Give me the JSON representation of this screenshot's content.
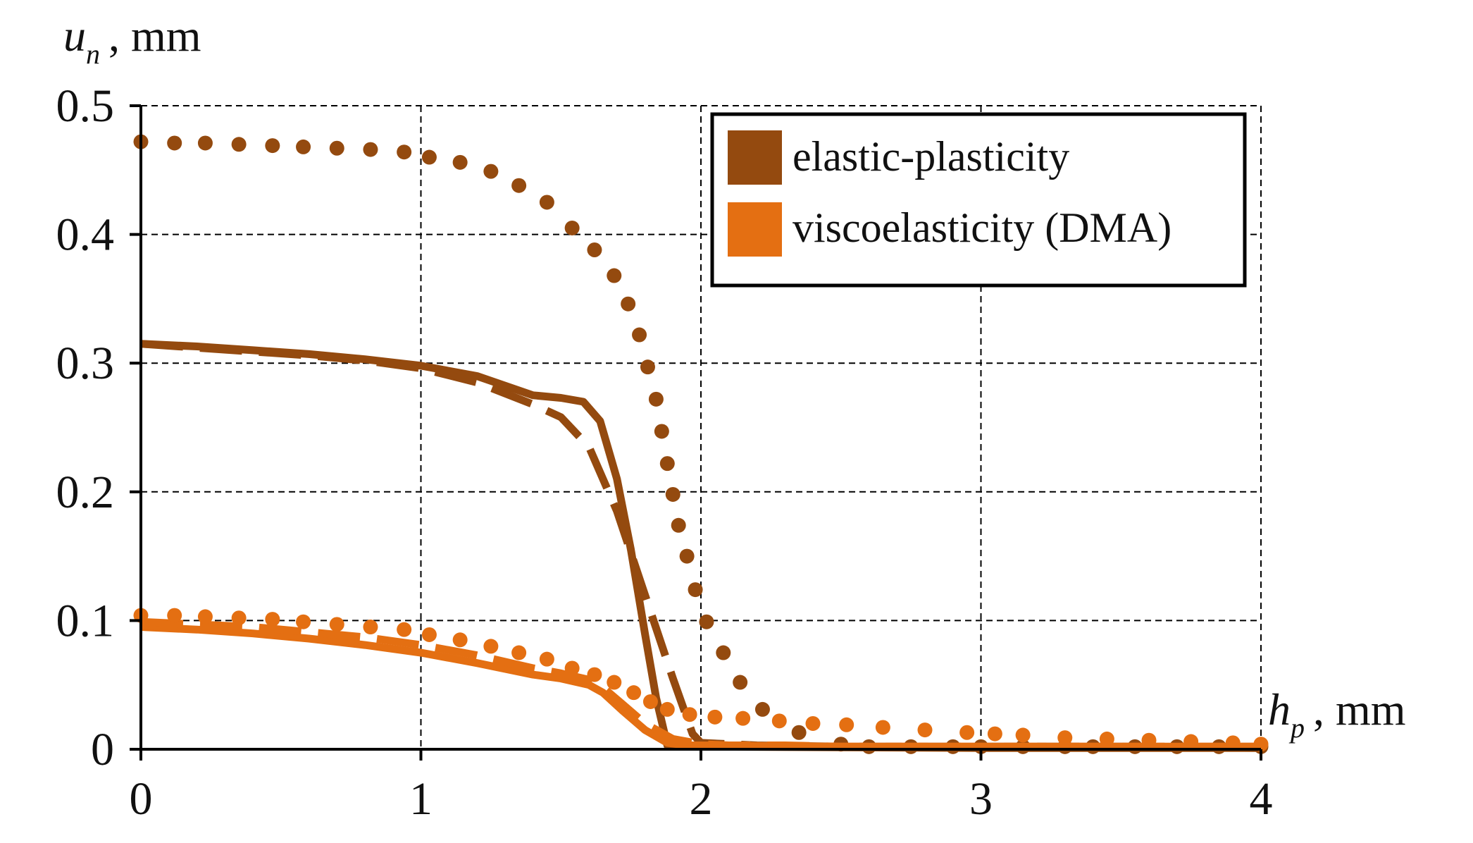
{
  "chart_data": {
    "type": "line",
    "xlabel": {
      "var": "h",
      "sub": "p",
      "unit": ", mm"
    },
    "ylabel": {
      "var": "u",
      "sub": "n",
      "unit": ", mm"
    },
    "xlim": [
      0,
      4
    ],
    "ylim": [
      0,
      0.5
    ],
    "xticks": [
      0,
      1,
      2,
      3,
      4
    ],
    "yticks": [
      0,
      0.1,
      0.2,
      0.3,
      0.4,
      0.5
    ],
    "xtick_labels": [
      "0",
      "1",
      "2",
      "3",
      "4"
    ],
    "ytick_labels": [
      "0",
      "0.1",
      "0.2",
      "0.3",
      "0.4",
      "0.5"
    ],
    "grid": true,
    "legend": {
      "placement": "top-right",
      "entries": [
        {
          "label": "elastic-plasticity",
          "color": "#944a0f"
        },
        {
          "label": "viscoelasticity (DMA)",
          "color": "#e46f12"
        }
      ]
    },
    "series": [
      {
        "group": "elastic-plasticity",
        "style": "solid",
        "color": "#944a0f",
        "x": [
          0,
          0.2,
          0.4,
          0.6,
          0.8,
          1.0,
          1.2,
          1.4,
          1.5,
          1.58,
          1.64,
          1.7,
          1.75,
          1.8,
          1.84,
          1.88,
          1.9,
          2.0,
          3.0,
          4.0
        ],
        "y": [
          0.315,
          0.313,
          0.31,
          0.307,
          0.303,
          0.298,
          0.29,
          0.275,
          0.273,
          0.27,
          0.255,
          0.21,
          0.155,
          0.09,
          0.04,
          0.003,
          0.002,
          0.002,
          0.001,
          0.001
        ]
      },
      {
        "group": "elastic-plasticity",
        "style": "dashed",
        "color": "#944a0f",
        "x": [
          0,
          0.2,
          0.4,
          0.6,
          0.8,
          1.0,
          1.2,
          1.4,
          1.5,
          1.6,
          1.7,
          1.8,
          1.9,
          1.97,
          2.0,
          2.2,
          2.5,
          3.0,
          3.5,
          4.0
        ],
        "y": [
          0.315,
          0.312,
          0.309,
          0.306,
          0.302,
          0.296,
          0.285,
          0.268,
          0.258,
          0.235,
          0.185,
          0.12,
          0.055,
          0.012,
          0.005,
          0.003,
          0.002,
          0.002,
          0.002,
          0.001
        ]
      },
      {
        "group": "elastic-plasticity",
        "style": "dotted",
        "color": "#944a0f",
        "x": [
          0,
          0.12,
          0.23,
          0.35,
          0.47,
          0.58,
          0.7,
          0.82,
          0.94,
          1.03,
          1.14,
          1.25,
          1.35,
          1.45,
          1.54,
          1.62,
          1.69,
          1.74,
          1.78,
          1.81,
          1.84,
          1.86,
          1.88,
          1.9,
          1.92,
          1.95,
          1.98,
          2.02,
          2.08,
          2.14,
          2.22,
          2.35,
          2.5,
          2.6,
          2.75,
          2.9,
          3.0,
          3.15,
          3.3,
          3.4,
          3.55,
          3.7,
          3.85,
          4.0
        ],
        "y": [
          0.472,
          0.471,
          0.471,
          0.47,
          0.469,
          0.468,
          0.467,
          0.466,
          0.464,
          0.46,
          0.456,
          0.449,
          0.438,
          0.425,
          0.405,
          0.388,
          0.368,
          0.346,
          0.322,
          0.297,
          0.272,
          0.247,
          0.222,
          0.198,
          0.174,
          0.15,
          0.124,
          0.099,
          0.075,
          0.052,
          0.031,
          0.013,
          0.004,
          0.002,
          0.002,
          0.002,
          0.002,
          0.002,
          0.002,
          0.002,
          0.002,
          0.002,
          0.002,
          0.002
        ]
      },
      {
        "group": "viscoelasticity (DMA)",
        "style": "solid",
        "color": "#e46f12",
        "x": [
          0,
          0.2,
          0.4,
          0.6,
          0.8,
          1.0,
          1.2,
          1.4,
          1.5,
          1.6,
          1.65,
          1.72,
          1.8,
          1.88,
          1.95,
          2.0,
          2.5,
          3.0,
          3.5,
          4.0
        ],
        "y": [
          0.095,
          0.093,
          0.09,
          0.086,
          0.081,
          0.075,
          0.067,
          0.058,
          0.055,
          0.05,
          0.044,
          0.03,
          0.015,
          0.005,
          0.003,
          0.003,
          0.002,
          0.002,
          0.002,
          0.002
        ]
      },
      {
        "group": "viscoelasticity (DMA)",
        "style": "dashed",
        "color": "#e46f12",
        "x": [
          0,
          0.2,
          0.4,
          0.6,
          0.8,
          1.0,
          1.2,
          1.4,
          1.5,
          1.6,
          1.65,
          1.72,
          1.8,
          1.9,
          2.0,
          2.1,
          2.3,
          2.5,
          3.0,
          3.5,
          4.0
        ],
        "y": [
          0.099,
          0.097,
          0.095,
          0.091,
          0.087,
          0.081,
          0.073,
          0.063,
          0.059,
          0.054,
          0.048,
          0.035,
          0.02,
          0.008,
          0.004,
          0.003,
          0.003,
          0.002,
          0.002,
          0.002,
          0.002
        ]
      },
      {
        "group": "viscoelasticity (DMA)",
        "style": "dotted",
        "color": "#e46f12",
        "x": [
          0,
          0.12,
          0.23,
          0.35,
          0.47,
          0.58,
          0.7,
          0.82,
          0.94,
          1.03,
          1.14,
          1.25,
          1.35,
          1.45,
          1.54,
          1.62,
          1.69,
          1.76,
          1.82,
          1.88,
          1.96,
          2.05,
          2.15,
          2.28,
          2.4,
          2.52,
          2.65,
          2.8,
          2.95,
          3.05,
          3.15,
          3.3,
          3.45,
          3.6,
          3.75,
          3.9,
          4.0
        ],
        "y": [
          0.104,
          0.104,
          0.103,
          0.102,
          0.101,
          0.099,
          0.097,
          0.095,
          0.093,
          0.089,
          0.085,
          0.08,
          0.075,
          0.07,
          0.063,
          0.058,
          0.052,
          0.044,
          0.037,
          0.031,
          0.027,
          0.025,
          0.024,
          0.022,
          0.02,
          0.019,
          0.017,
          0.015,
          0.013,
          0.012,
          0.011,
          0.009,
          0.008,
          0.007,
          0.006,
          0.005,
          0.004
        ]
      }
    ]
  }
}
